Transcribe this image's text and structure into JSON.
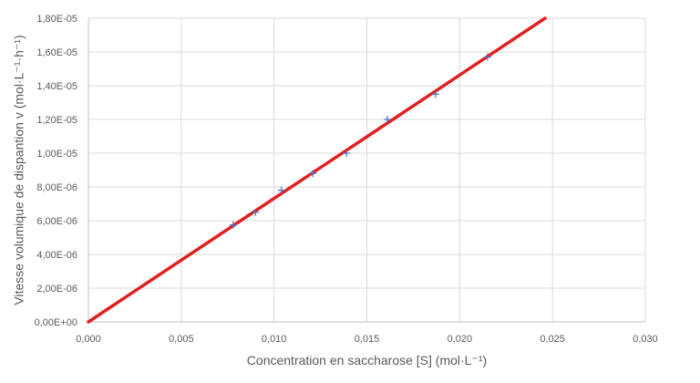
{
  "chart_data": {
    "type": "scatter",
    "xlabel": "Concentration en saccharose [S] (mol·L⁻¹)",
    "ylabel": "Vitesse volumique de dispantion v (mol·L⁻¹·h⁻¹)",
    "xlim": [
      0,
      0.03
    ],
    "ylim": [
      0,
      1.8e-05
    ],
    "x_ticks": [
      0,
      0.005,
      0.01,
      0.015,
      0.02,
      0.025,
      0.03
    ],
    "x_tick_labels": [
      "0,000",
      "0,005",
      "0,010",
      "0,015",
      "0,020",
      "0,025",
      "0,030"
    ],
    "y_ticks": [
      0,
      2e-06,
      4e-06,
      6e-06,
      8e-06,
      1e-05,
      1.2e-05,
      1.4e-05,
      1.6e-05,
      1.8e-05
    ],
    "y_tick_labels": [
      "0,00E+00",
      "2,00E-06",
      "4,00E-06",
      "6,00E-06",
      "8,00E-06",
      "1,00E-05",
      "1,20E-05",
      "1,40E-05",
      "1,60E-05",
      "1,80E-05"
    ],
    "grid": true,
    "series": [
      {
        "type": "scatter",
        "marker": "+",
        "color": "#4472c4",
        "points": [
          {
            "x": 0.0078,
            "y": 5.75e-06
          },
          {
            "x": 0.009,
            "y": 6.5e-06
          },
          {
            "x": 0.0104,
            "y": 7.8e-06
          },
          {
            "x": 0.0121,
            "y": 8.8e-06
          },
          {
            "x": 0.0139,
            "y": 1e-05
          },
          {
            "x": 0.0161,
            "y": 1.2e-05
          },
          {
            "x": 0.0187,
            "y": 1.35e-05
          },
          {
            "x": 0.0215,
            "y": 1.57e-05
          }
        ]
      },
      {
        "type": "line",
        "color": "#e02020",
        "points": [
          {
            "x": 0,
            "y": 0
          },
          {
            "x": 0.0246,
            "y": 1.8e-05
          }
        ]
      }
    ]
  }
}
